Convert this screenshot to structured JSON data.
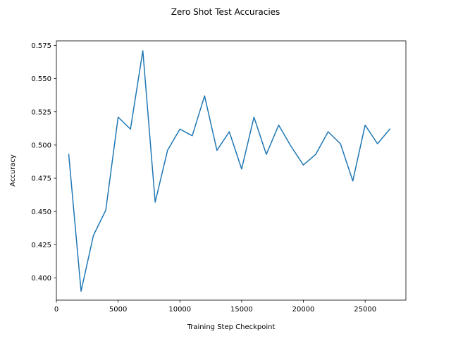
{
  "chart_data": {
    "type": "line",
    "title": "Zero Shot Test Accuracies",
    "xlabel": "Training Step Checkpoint",
    "ylabel": "Accuracy",
    "xlim": [
      0,
      28300
    ],
    "ylim": [
      0.3833,
      0.5784
    ],
    "xticks": [
      0,
      5000,
      10000,
      15000,
      20000,
      25000
    ],
    "xtick_labels": [
      "0",
      "5000",
      "10000",
      "15000",
      "20000",
      "25000"
    ],
    "yticks": [
      0.4,
      0.425,
      0.45,
      0.475,
      0.5,
      0.525,
      0.55,
      0.575
    ],
    "ytick_labels": [
      "0.400",
      "0.425",
      "0.450",
      "0.475",
      "0.500",
      "0.525",
      "0.550",
      "0.575"
    ],
    "grid": false,
    "series": [
      {
        "color": "#1f77b4",
        "x": [
          1000,
          2000,
          3000,
          4000,
          5000,
          6000,
          7000,
          8000,
          9000,
          10000,
          11000,
          12000,
          13000,
          14000,
          15000,
          16000,
          17000,
          18000,
          19000,
          20000,
          21000,
          22000,
          23000,
          24000,
          25000,
          26000,
          27000
        ],
        "y": [
          0.493,
          0.39,
          0.432,
          0.451,
          0.521,
          0.512,
          0.571,
          0.457,
          0.496,
          0.512,
          0.507,
          0.537,
          0.496,
          0.51,
          0.482,
          0.521,
          0.493,
          0.515,
          0.499,
          0.485,
          0.493,
          0.51,
          0.501,
          0.473,
          0.515,
          0.501,
          0.512
        ]
      }
    ]
  }
}
